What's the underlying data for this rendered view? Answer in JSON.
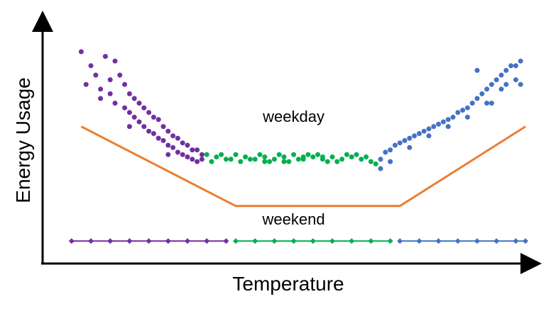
{
  "chart_data": {
    "type": "scatter",
    "title": "",
    "xlabel": "Temperature",
    "ylabel": "Energy Usage",
    "grid": false,
    "legend": "none",
    "axis_ticks": false,
    "xlim": [
      0,
      100
    ],
    "ylim": [
      0,
      100
    ],
    "colors": {
      "cold": "#7030A0",
      "mild": "#00B050",
      "hot": "#4472C4",
      "trend": "#ED7D31",
      "axis": "#000000"
    },
    "annotations": [
      {
        "text": "weekday",
        "x": 52,
        "y": 60
      },
      {
        "text": "weekend",
        "x": 52,
        "y": 16
      }
    ],
    "series": [
      {
        "color_key": "cold",
        "values": [
          [
            8,
            90
          ],
          [
            10,
            84
          ],
          [
            13,
            88
          ],
          [
            15,
            86
          ],
          [
            11,
            80
          ],
          [
            9,
            76
          ],
          [
            12,
            74
          ],
          [
            14,
            78
          ],
          [
            16,
            80
          ],
          [
            17,
            76
          ],
          [
            14,
            72
          ],
          [
            18,
            72
          ],
          [
            12,
            70
          ],
          [
            19,
            70
          ],
          [
            15,
            68
          ],
          [
            20,
            68
          ],
          [
            17,
            66
          ],
          [
            21,
            66
          ],
          [
            18,
            64
          ],
          [
            22,
            64
          ],
          [
            19,
            62
          ],
          [
            23,
            62
          ],
          [
            20,
            60
          ],
          [
            24,
            61
          ],
          [
            21,
            58
          ],
          [
            25,
            58
          ],
          [
            22,
            56
          ],
          [
            26,
            56
          ],
          [
            23,
            55
          ],
          [
            27,
            54
          ],
          [
            24,
            53
          ],
          [
            28,
            53
          ],
          [
            25,
            52
          ],
          [
            29,
            51
          ],
          [
            26,
            50
          ],
          [
            30,
            50
          ],
          [
            27,
            49
          ],
          [
            31,
            48
          ],
          [
            28,
            47
          ],
          [
            32,
            48
          ],
          [
            29,
            46
          ],
          [
            33,
            46
          ],
          [
            30,
            45
          ],
          [
            31,
            44
          ],
          [
            32,
            43
          ],
          [
            33,
            44
          ],
          [
            18,
            58
          ],
          [
            26,
            46
          ]
        ]
      },
      {
        "color_key": "mild",
        "values": [
          [
            34,
            46
          ],
          [
            36,
            45
          ],
          [
            38,
            44
          ],
          [
            40,
            46
          ],
          [
            42,
            45
          ],
          [
            44,
            44
          ],
          [
            46,
            45
          ],
          [
            48,
            44
          ],
          [
            50,
            45
          ],
          [
            52,
            46
          ],
          [
            54,
            44
          ],
          [
            56,
            45
          ],
          [
            58,
            44
          ],
          [
            60,
            45
          ],
          [
            62,
            44
          ],
          [
            64,
            45
          ],
          [
            66,
            44
          ],
          [
            68,
            43
          ],
          [
            37,
            46
          ],
          [
            41,
            43
          ],
          [
            45,
            46
          ],
          [
            49,
            46
          ],
          [
            53,
            44
          ],
          [
            57,
            46
          ],
          [
            61,
            43
          ],
          [
            65,
            46
          ],
          [
            39,
            44
          ],
          [
            43,
            44
          ],
          [
            47,
            43
          ],
          [
            51,
            43
          ],
          [
            55,
            46
          ],
          [
            59,
            43
          ],
          [
            63,
            46
          ],
          [
            67,
            45
          ],
          [
            35,
            43
          ],
          [
            69,
            42
          ],
          [
            50,
            43
          ],
          [
            58,
            45
          ],
          [
            46,
            43
          ],
          [
            54,
            45
          ]
        ]
      },
      {
        "color_key": "hot",
        "values": [
          [
            70,
            44
          ],
          [
            71,
            47
          ],
          [
            72,
            48
          ],
          [
            73,
            50
          ],
          [
            74,
            51
          ],
          [
            75,
            52
          ],
          [
            76,
            53
          ],
          [
            77,
            54
          ],
          [
            78,
            55
          ],
          [
            79,
            56
          ],
          [
            80,
            57
          ],
          [
            81,
            58
          ],
          [
            82,
            59
          ],
          [
            83,
            60
          ],
          [
            84,
            61
          ],
          [
            85,
            62
          ],
          [
            86,
            64
          ],
          [
            87,
            65
          ],
          [
            88,
            66
          ],
          [
            89,
            68
          ],
          [
            90,
            70
          ],
          [
            91,
            72
          ],
          [
            92,
            74
          ],
          [
            93,
            76
          ],
          [
            94,
            78
          ],
          [
            95,
            80
          ],
          [
            96,
            82
          ],
          [
            97,
            84
          ],
          [
            98,
            78
          ],
          [
            99,
            86
          ],
          [
            90,
            82
          ],
          [
            95,
            74
          ],
          [
            93,
            68
          ],
          [
            70,
            40
          ],
          [
            72,
            43
          ],
          [
            76,
            49
          ],
          [
            80,
            54
          ],
          [
            84,
            58
          ],
          [
            88,
            62
          ],
          [
            92,
            68
          ],
          [
            96,
            76
          ],
          [
            98,
            84
          ],
          [
            99,
            76
          ]
        ]
      },
      {
        "color_key": "trend",
        "type": "line",
        "values": [
          [
            8,
            58
          ],
          [
            40,
            24
          ],
          [
            74,
            24
          ],
          [
            100,
            58
          ]
        ]
      },
      {
        "color_key": "cold",
        "type": "line-markers",
        "marker": "diamond",
        "values": [
          [
            6,
            9
          ],
          [
            10,
            9
          ],
          [
            14,
            9
          ],
          [
            18,
            9
          ],
          [
            22,
            9
          ],
          [
            26,
            9
          ],
          [
            30,
            9
          ],
          [
            34,
            9
          ],
          [
            38,
            9
          ]
        ]
      },
      {
        "color_key": "mild",
        "type": "line-markers",
        "marker": "diamond",
        "values": [
          [
            40,
            9
          ],
          [
            44,
            9
          ],
          [
            48,
            9
          ],
          [
            52,
            9
          ],
          [
            56,
            9
          ],
          [
            60,
            9
          ],
          [
            64,
            9
          ],
          [
            68,
            9
          ],
          [
            72,
            9
          ]
        ]
      },
      {
        "color_key": "hot",
        "type": "line-markers",
        "marker": "diamond",
        "values": [
          [
            74,
            9
          ],
          [
            78,
            9
          ],
          [
            82,
            9
          ],
          [
            86,
            9
          ],
          [
            90,
            9
          ],
          [
            94,
            9
          ],
          [
            98,
            9
          ],
          [
            100,
            9
          ]
        ]
      }
    ]
  }
}
